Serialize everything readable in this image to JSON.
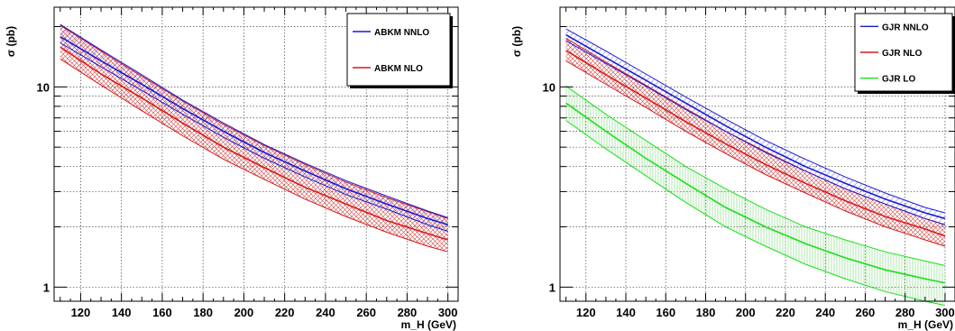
{
  "chart_data": [
    {
      "type": "line",
      "panel": "left",
      "xlabel": "m_H (GeV)",
      "ylabel": "σ (pb)",
      "xlim": [
        107,
        305
      ],
      "ylim": [
        0.85,
        25
      ],
      "yscale": "log",
      "grid": true,
      "x_ticks": [
        "120",
        "140",
        "160",
        "180",
        "200",
        "220",
        "240",
        "260",
        "280",
        "300"
      ],
      "y_ticks": [
        "1",
        "10"
      ],
      "legend_position": "top-right",
      "x": [
        110,
        130,
        150,
        170,
        190,
        210,
        230,
        250,
        270,
        290,
        300
      ],
      "series": [
        {
          "name": "ABKM NNLO",
          "color": "#1a1ad9",
          "hatch": "diagonal",
          "values": [
            17.8,
            13.5,
            10.3,
            7.8,
            6.0,
            4.7,
            3.8,
            3.1,
            2.6,
            2.2,
            2.05
          ],
          "lower": [
            16.6,
            12.6,
            9.6,
            7.3,
            5.6,
            4.4,
            3.55,
            2.9,
            2.45,
            2.05,
            1.9
          ],
          "upper": [
            20.5,
            15.3,
            11.5,
            8.6,
            6.6,
            5.15,
            4.15,
            3.4,
            2.85,
            2.4,
            2.22
          ]
        },
        {
          "name": "ABKM NLO",
          "color": "#d91a1a",
          "hatch": "crosshatch",
          "values": [
            15.8,
            11.6,
            8.8,
            6.6,
            5.0,
            3.95,
            3.15,
            2.6,
            2.15,
            1.85,
            1.72
          ],
          "lower": [
            13.8,
            10.2,
            7.6,
            5.7,
            4.35,
            3.45,
            2.75,
            2.25,
            1.88,
            1.6,
            1.5
          ],
          "upper": [
            20.3,
            15.1,
            11.3,
            8.5,
            6.5,
            5.1,
            4.1,
            3.35,
            2.8,
            2.38,
            2.2
          ]
        }
      ]
    },
    {
      "type": "line",
      "panel": "right",
      "xlabel": "m_H (GeV)",
      "ylabel": "σ (pb)",
      "xlim": [
        107,
        305
      ],
      "ylim": [
        0.85,
        25
      ],
      "yscale": "log",
      "grid": true,
      "x_ticks": [
        "120",
        "140",
        "160",
        "180",
        "200",
        "220",
        "240",
        "260",
        "280",
        "300"
      ],
      "y_ticks": [
        "1",
        "10"
      ],
      "legend_position": "top-right",
      "x": [
        110,
        130,
        150,
        170,
        190,
        210,
        230,
        250,
        270,
        290,
        300
      ],
      "series": [
        {
          "name": "GJR NNLO",
          "color": "#1a1ad9",
          "hatch": "diagonal",
          "values": [
            18.2,
            14.0,
            10.8,
            8.3,
            6.4,
            5.0,
            4.0,
            3.3,
            2.75,
            2.35,
            2.2
          ],
          "lower": [
            17.0,
            13.1,
            10.1,
            7.7,
            6.0,
            4.7,
            3.8,
            3.1,
            2.6,
            2.2,
            2.05
          ],
          "upper": [
            19.5,
            15.1,
            11.6,
            8.9,
            6.9,
            5.4,
            4.35,
            3.55,
            2.95,
            2.5,
            2.35
          ]
        },
        {
          "name": "GJR NLO",
          "color": "#d91a1a",
          "hatch": "crosshatch",
          "values": [
            15.2,
            11.5,
            8.8,
            6.7,
            5.2,
            4.1,
            3.3,
            2.7,
            2.25,
            1.95,
            1.8
          ],
          "lower": [
            13.5,
            10.3,
            7.9,
            6.0,
            4.65,
            3.65,
            2.95,
            2.4,
            2.0,
            1.72,
            1.6
          ],
          "upper": [
            17.5,
            13.3,
            10.2,
            7.8,
            6.0,
            4.75,
            3.8,
            3.1,
            2.6,
            2.2,
            2.05
          ]
        },
        {
          "name": "GJR LO",
          "color": "#1adf1a",
          "hatch": "vertical",
          "values": [
            8.3,
            6.0,
            4.4,
            3.3,
            2.5,
            2.0,
            1.65,
            1.4,
            1.22,
            1.1,
            1.05
          ],
          "lower": [
            6.8,
            4.9,
            3.6,
            2.65,
            2.0,
            1.6,
            1.3,
            1.1,
            0.95,
            0.85,
            0.81
          ],
          "upper": [
            10.1,
            7.3,
            5.4,
            4.0,
            3.1,
            2.45,
            2.0,
            1.72,
            1.5,
            1.35,
            1.28
          ]
        }
      ]
    }
  ]
}
